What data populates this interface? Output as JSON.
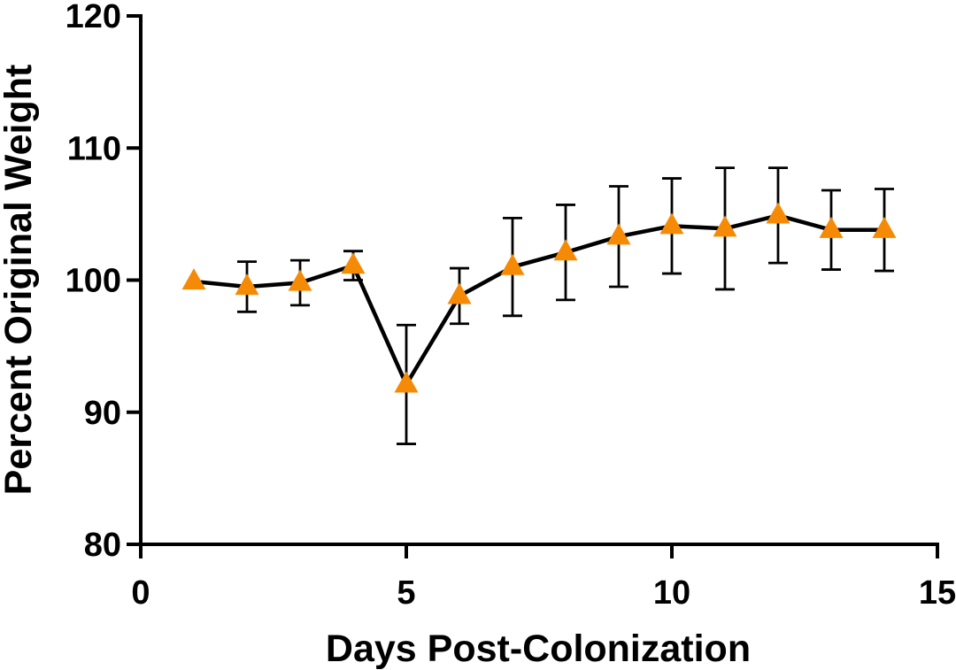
{
  "chart_data": {
    "type": "line",
    "title": "",
    "xlabel": "Days Post-Colonization",
    "ylabel": "Percent Original Weight",
    "xlim": [
      0,
      15
    ],
    "ylim": [
      80,
      120
    ],
    "x_ticks": [
      0,
      5,
      10,
      15
    ],
    "y_ticks": [
      80,
      90,
      100,
      110,
      120
    ],
    "x_tick_labels": [
      "0",
      "5",
      "10",
      "15"
    ],
    "y_tick_labels": [
      "80",
      "90",
      "100",
      "110",
      "120"
    ],
    "grid": false,
    "legend": "none",
    "series": [
      {
        "name": "Percent Original Weight",
        "line_color": "#000000",
        "marker": "triangle",
        "marker_color": "#F58A07",
        "x": [
          1,
          2,
          3,
          4,
          5,
          6,
          7,
          8,
          9,
          10,
          11,
          12,
          13,
          14
        ],
        "values": [
          99.9,
          99.5,
          99.8,
          101.1,
          92.1,
          98.8,
          101.0,
          102.1,
          103.3,
          104.1,
          103.9,
          104.9,
          103.8,
          103.8
        ],
        "error": [
          0,
          1.9,
          1.7,
          1.1,
          4.5,
          2.1,
          3.7,
          3.6,
          3.8,
          3.6,
          4.6,
          3.6,
          3.0,
          3.1
        ]
      }
    ]
  }
}
